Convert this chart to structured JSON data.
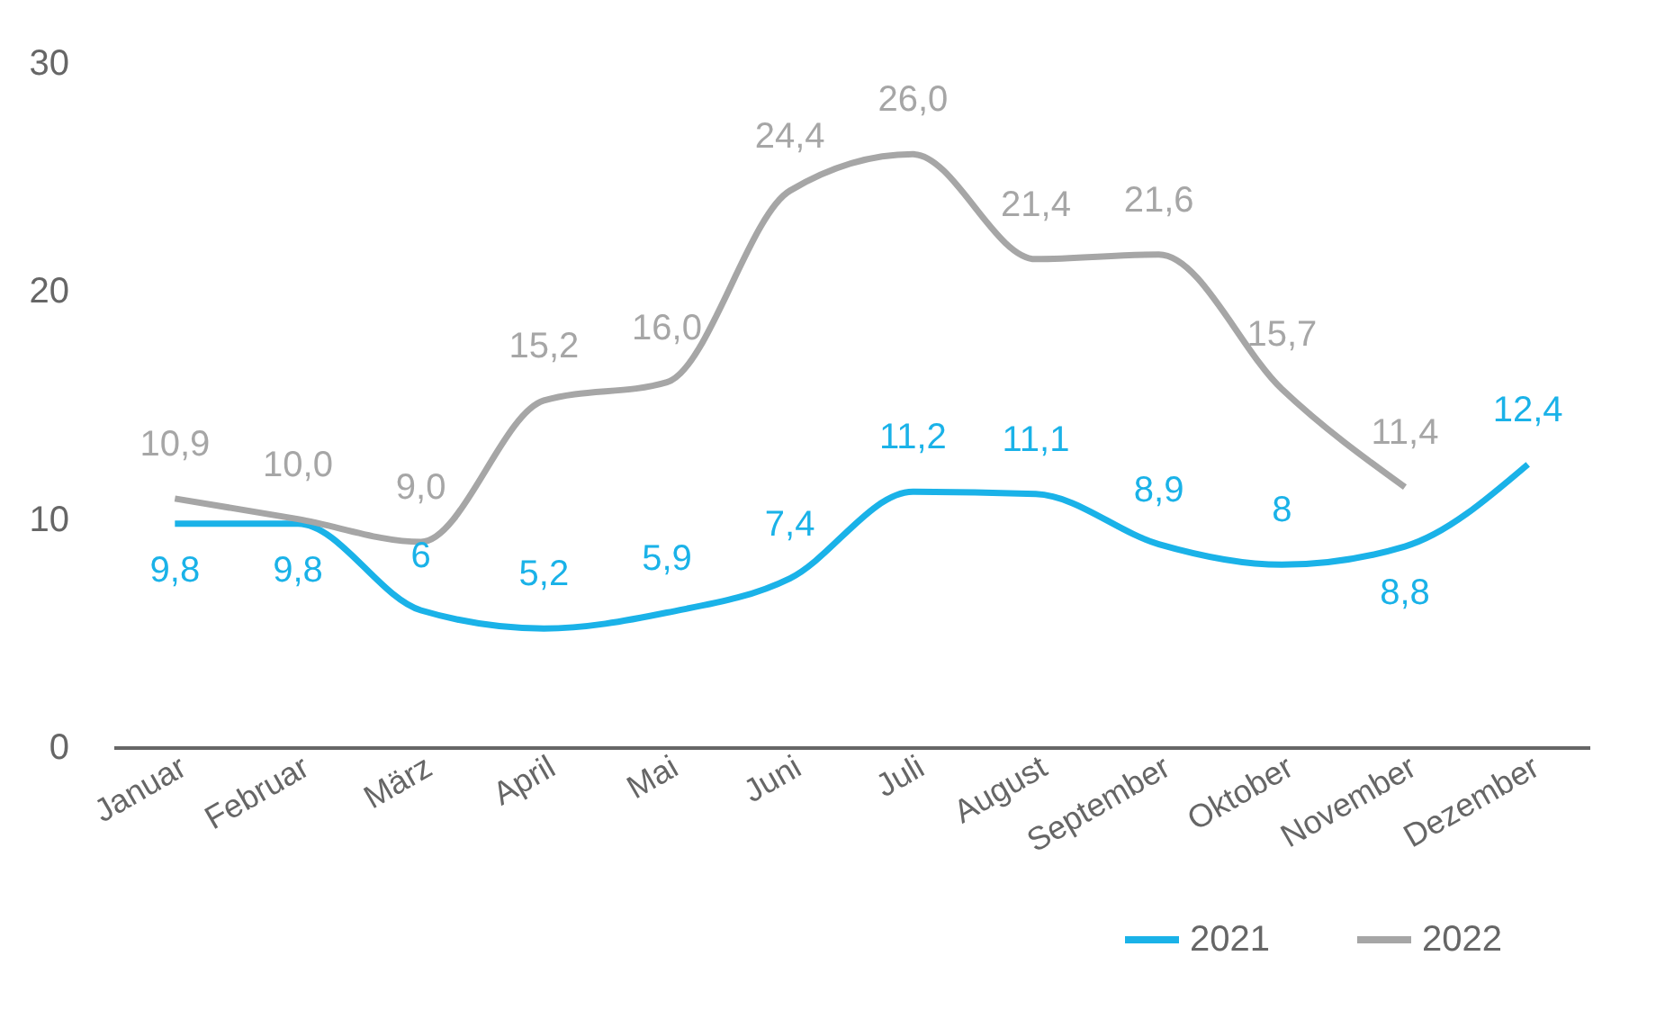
{
  "chart_data": {
    "type": "line",
    "categories": [
      "Januar",
      "Februar",
      "März",
      "April",
      "Mai",
      "Juni",
      "Juli",
      "August",
      "September",
      "Oktober",
      "November",
      "Dezember"
    ],
    "series": [
      {
        "name": "2021",
        "color": "#1ab2e8",
        "values": [
          9.8,
          9.8,
          6,
          5.2,
          5.9,
          7.4,
          11.2,
          11.1,
          8.9,
          8,
          8.8,
          12.4
        ],
        "value_labels": [
          "9,8",
          "9,8",
          "6",
          "5,2",
          "5,9",
          "7,4",
          "11,2",
          "11,1",
          "8,9",
          "8",
          "8,8",
          "12,4"
        ]
      },
      {
        "name": "2022",
        "color": "#a6a6a6",
        "values": [
          10.9,
          10.0,
          9.0,
          15.2,
          16.0,
          24.4,
          26.0,
          21.4,
          21.6,
          15.7,
          11.4,
          null
        ],
        "value_labels": [
          "10,9",
          "10,0",
          "9,0",
          "15,2",
          "16,0",
          "24,4",
          "26,0",
          "21,4",
          "21,6",
          "15,7",
          "11,4",
          null
        ]
      }
    ],
    "ylim": [
      0,
      30
    ],
    "yticks": [
      0,
      10,
      20,
      30
    ],
    "grid": false,
    "legend": "bottom right",
    "marker": "none",
    "line_style": "solid"
  }
}
